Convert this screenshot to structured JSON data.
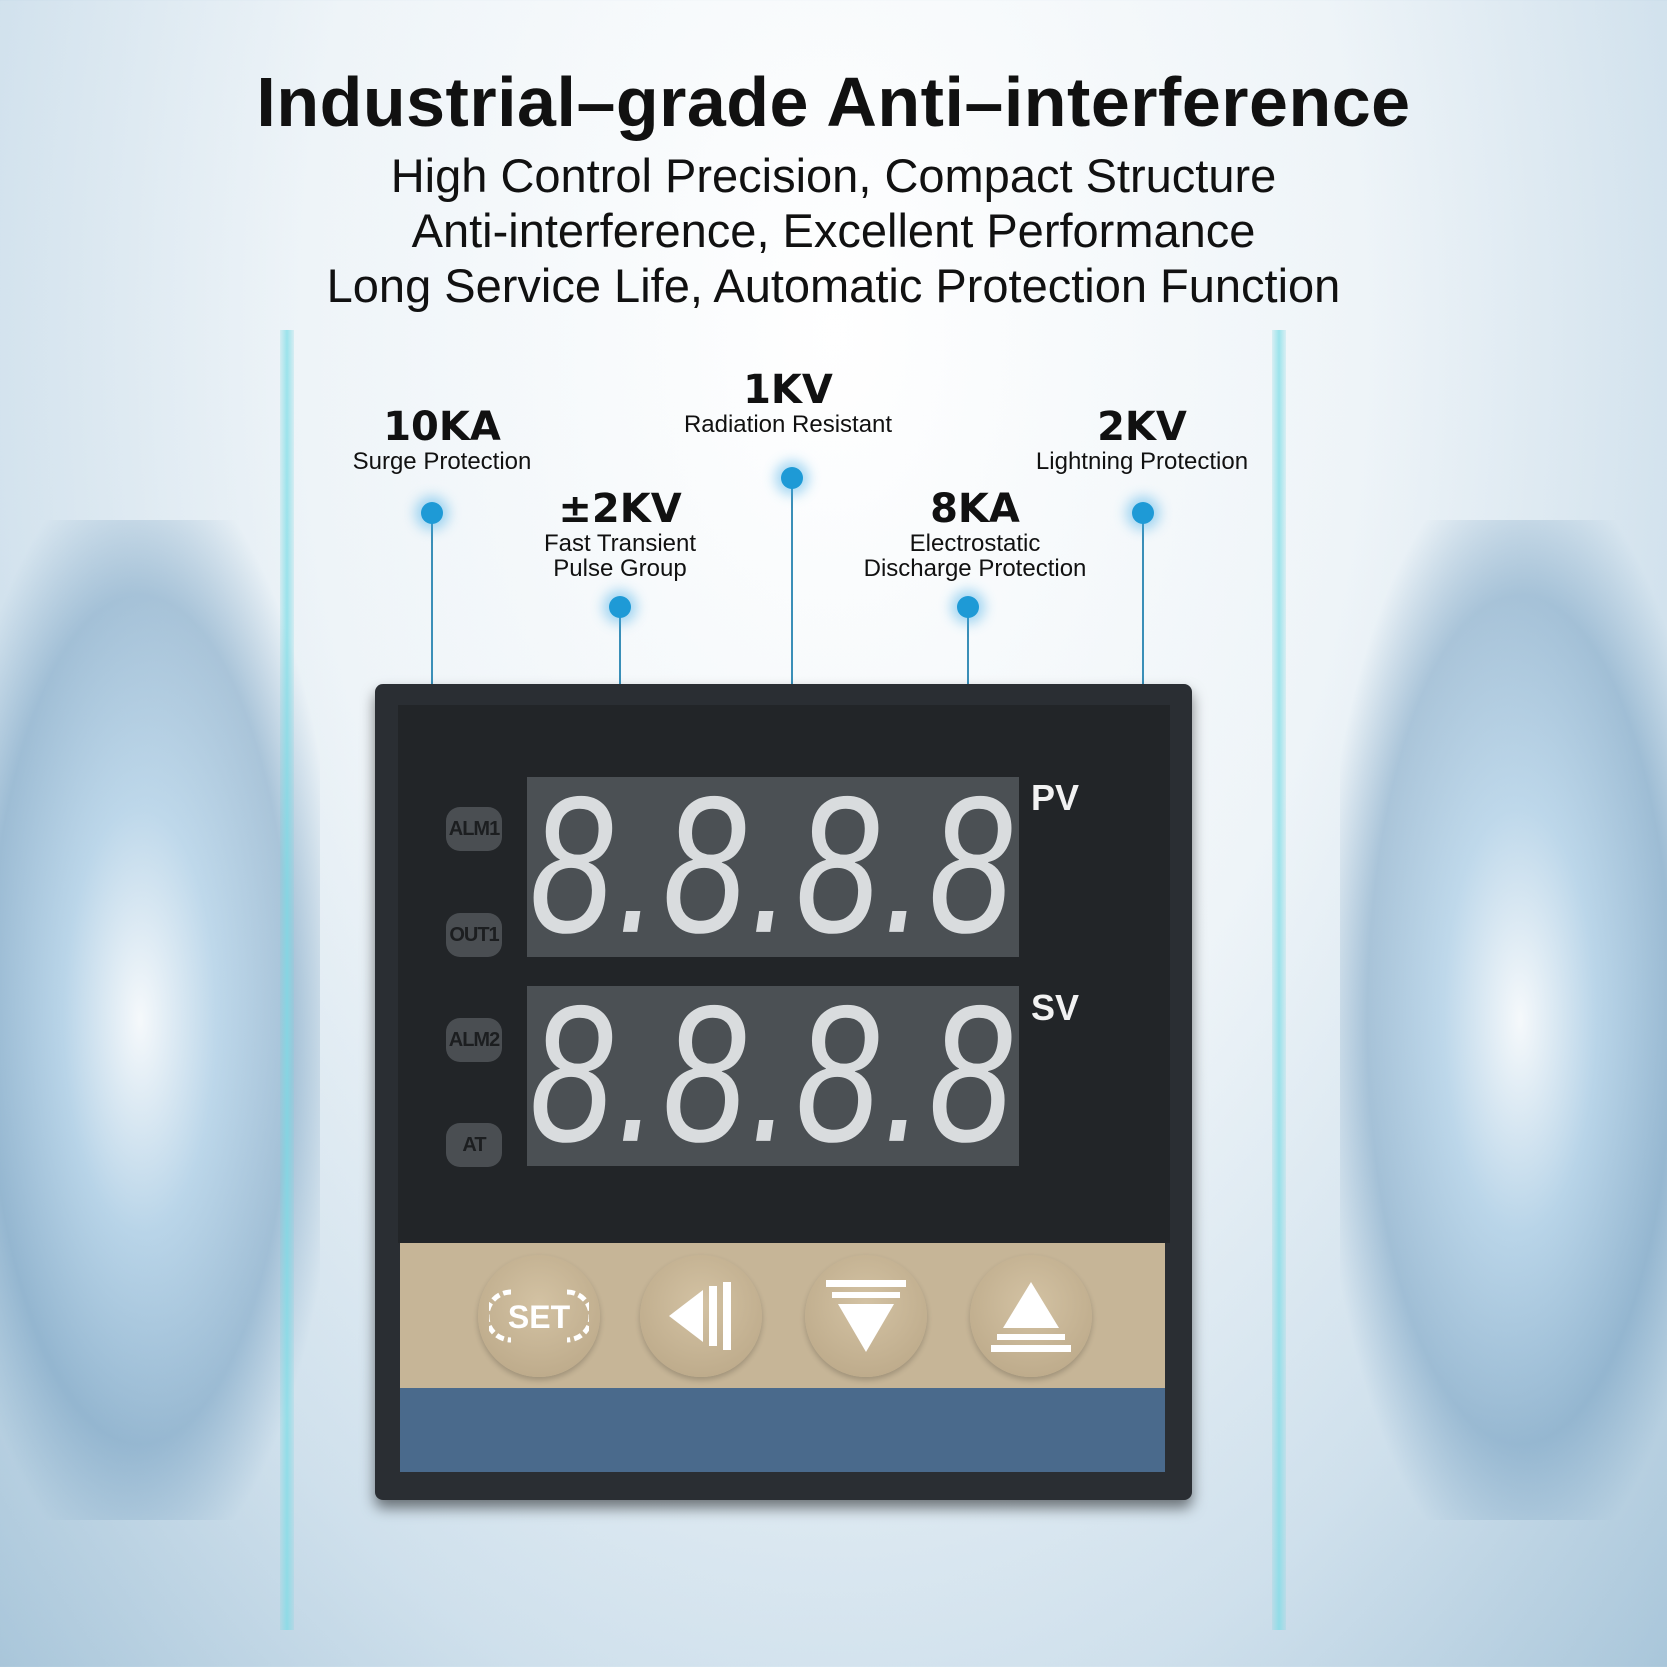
{
  "header": {
    "title": "Industrial–grade Anti–interference",
    "lines": [
      "High Control Precision, Compact Structure",
      "Anti-interference, Excellent Performance",
      "Long Service Life, Automatic Protection Function"
    ]
  },
  "callouts": [
    {
      "value": "10KA",
      "label": "Surge Protection"
    },
    {
      "value": "±2KV",
      "label": "Fast Transient",
      "label2": "Pulse Group"
    },
    {
      "value": "1KV",
      "label": "Radiation Resistant"
    },
    {
      "value": "8KA",
      "label": "Electrostatic",
      "label2": "Discharge Protection"
    },
    {
      "value": "2KV",
      "label": "Lightning Protection"
    }
  ],
  "device": {
    "pv_label": "PV",
    "sv_label": "SV",
    "pv_value": "8.8.8.8",
    "sv_value": "8.8.8.8",
    "indicators": [
      "ALM1",
      "OUT1",
      "ALM2",
      "AT"
    ],
    "keys": [
      {
        "icon": "set-icon",
        "label": "SET"
      },
      {
        "icon": "shift-left-icon"
      },
      {
        "icon": "down-arrow-icon"
      },
      {
        "icon": "up-arrow-icon"
      }
    ]
  },
  "colors": {
    "accent": "#1e9ad6",
    "panel": "#2a2e33",
    "keypad": "#c6b597",
    "base": "#4a6a8c",
    "segment": "#d9dcde"
  }
}
